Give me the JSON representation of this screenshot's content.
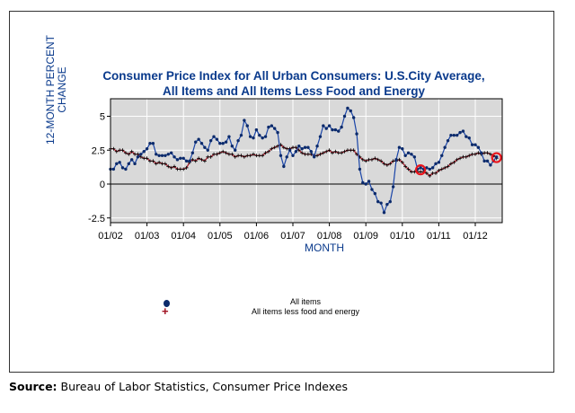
{
  "chart_data": {
    "type": "line",
    "title": "Consumer Price Index for All Urban Consumers: U.S.City Average,",
    "subtitle": "All Items and All Items Less Food and Energy",
    "xlabel": "MONTH",
    "ylabel_line1": "12-MONTH PERCENT",
    "ylabel_line2": "CHANGE",
    "ylim": [
      -3.0,
      6.5
    ],
    "y_ticks": [
      {
        "value": -2.5,
        "label": "-2.5"
      },
      {
        "value": 0,
        "label": "0"
      },
      {
        "value": 2.5,
        "label": "2.5"
      },
      {
        "value": 5,
        "label": "5"
      }
    ],
    "x_start": "2002-01",
    "x_end": "2012-09",
    "x_ticks": [
      "01/02",
      "01/03",
      "01/04",
      "01/05",
      "01/06",
      "01/07",
      "01/08",
      "01/09",
      "01/10",
      "01/11",
      "01/12"
    ],
    "grid": true,
    "zero_line": true,
    "series": [
      {
        "name": "All items",
        "color": "#1a45a8",
        "marker": "dot",
        "marker_color": "#0b2a6b",
        "values": [
          1.1,
          1.1,
          1.5,
          1.6,
          1.2,
          1.1,
          1.5,
          1.8,
          1.5,
          2.0,
          2.2,
          2.4,
          2.6,
          3.0,
          3.0,
          2.2,
          2.1,
          2.1,
          2.1,
          2.2,
          2.3,
          2.0,
          1.8,
          1.9,
          1.9,
          1.7,
          1.7,
          2.3,
          3.1,
          3.3,
          3.0,
          2.7,
          2.5,
          3.2,
          3.5,
          3.3,
          3.0,
          3.0,
          3.1,
          3.5,
          2.8,
          2.5,
          3.2,
          3.6,
          4.7,
          4.3,
          3.5,
          3.4,
          4.0,
          3.6,
          3.4,
          3.5,
          4.2,
          4.3,
          4.1,
          3.8,
          2.1,
          1.3,
          2.0,
          2.5,
          2.1,
          2.4,
          2.8,
          2.6,
          2.7,
          2.7,
          2.4,
          2.0,
          2.8,
          3.5,
          4.3,
          4.1,
          4.3,
          4.0,
          4.0,
          3.9,
          4.2,
          5.0,
          5.6,
          5.4,
          4.9,
          3.7,
          1.1,
          0.1,
          0.0,
          0.2,
          -0.4,
          -0.7,
          -1.3,
          -1.4,
          -2.1,
          -1.5,
          -1.3,
          -0.2,
          1.8,
          2.7,
          2.6,
          2.1,
          2.3,
          2.2,
          2.0,
          1.1,
          1.2,
          1.1,
          1.2,
          1.1,
          1.2,
          1.5,
          1.6,
          2.1,
          2.7,
          3.2,
          3.6,
          3.6,
          3.6,
          3.8,
          3.9,
          3.5,
          3.4,
          2.9,
          2.9,
          2.7,
          2.3,
          1.7,
          1.7,
          1.4,
          1.7,
          2.0
        ],
        "circled_points": [
          "2010-07",
          "2012-08"
        ]
      },
      {
        "name": "All items less food and energy",
        "color": "#a01020",
        "marker": "plus",
        "marker_color": "#000000",
        "values": [
          2.6,
          2.6,
          2.4,
          2.5,
          2.5,
          2.3,
          2.2,
          2.4,
          2.2,
          2.2,
          2.0,
          1.9,
          1.9,
          1.7,
          1.7,
          1.5,
          1.6,
          1.5,
          1.5,
          1.3,
          1.2,
          1.3,
          1.1,
          1.1,
          1.1,
          1.2,
          1.6,
          1.8,
          1.7,
          1.9,
          1.8,
          1.7,
          2.0,
          2.0,
          2.2,
          2.2,
          2.3,
          2.4,
          2.3,
          2.2,
          2.2,
          2.0,
          2.1,
          2.1,
          2.0,
          2.1,
          2.1,
          2.2,
          2.1,
          2.1,
          2.1,
          2.3,
          2.4,
          2.6,
          2.7,
          2.8,
          2.9,
          2.7,
          2.6,
          2.6,
          2.7,
          2.7,
          2.5,
          2.3,
          2.2,
          2.2,
          2.2,
          2.1,
          2.1,
          2.2,
          2.3,
          2.4,
          2.5,
          2.3,
          2.4,
          2.3,
          2.3,
          2.4,
          2.5,
          2.5,
          2.5,
          2.2,
          2.0,
          1.8,
          1.7,
          1.8,
          1.8,
          1.9,
          1.8,
          1.7,
          1.5,
          1.4,
          1.5,
          1.7,
          1.7,
          1.8,
          1.6,
          1.3,
          1.1,
          0.9,
          0.9,
          0.9,
          0.9,
          0.9,
          0.8,
          0.6,
          0.8,
          0.8,
          1.0,
          1.1,
          1.2,
          1.3,
          1.5,
          1.6,
          1.8,
          1.9,
          2.0,
          2.0,
          2.1,
          2.2,
          2.2,
          2.3,
          2.2,
          2.3,
          2.3,
          2.2,
          2.1,
          1.9
        ]
      }
    ],
    "legend_position": "bottom-left"
  },
  "legend": {
    "items": [
      {
        "label": "All items"
      },
      {
        "label": "All items less food and energy"
      }
    ]
  },
  "source": {
    "label": "Source:",
    "text": " Bureau of Labor Statistics, Consumer Price Indexes"
  }
}
